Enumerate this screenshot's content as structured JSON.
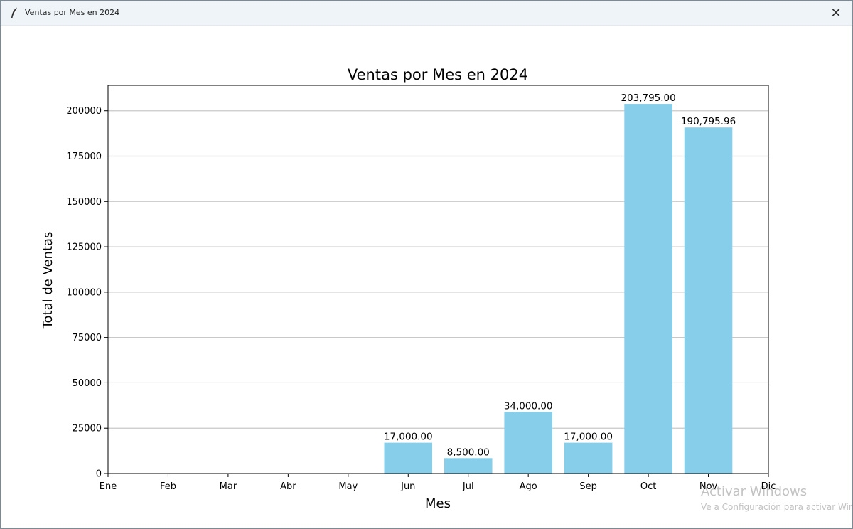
{
  "window": {
    "title": "Ventas por Mes en 2024",
    "app_icon": "feather-icon",
    "close_icon": "close-icon",
    "close_glyph": "✕"
  },
  "chart_data": {
    "type": "bar",
    "title": "Ventas por Mes en 2024",
    "xlabel": "Mes",
    "ylabel": "Total de Ventas",
    "categories": [
      "Jun",
      "Jul",
      "Ago",
      "Sep",
      "Oct",
      "Nov"
    ],
    "values": [
      17000.0,
      8500.0,
      34000.0,
      17000.0,
      203795.0,
      190795.96
    ],
    "value_labels": [
      "17,000.00",
      "8,500.00",
      "34,000.00",
      "17,000.00",
      "203,795.00",
      "190,795.96"
    ],
    "x_ticks": [
      "Ene",
      "Feb",
      "Mar",
      "Abr",
      "May",
      "Jun",
      "Jul",
      "Ago",
      "Sep",
      "Oct",
      "Nov",
      "Dic"
    ],
    "y_ticks": [
      0,
      25000,
      50000,
      75000,
      100000,
      125000,
      150000,
      175000,
      200000
    ],
    "ylim": [
      0,
      214000
    ],
    "grid": "horizontal",
    "bar_color": "#87ceeb"
  },
  "watermark": {
    "line1": "Activar Windows",
    "line2": "Ve a Configuración para activar Windows."
  }
}
